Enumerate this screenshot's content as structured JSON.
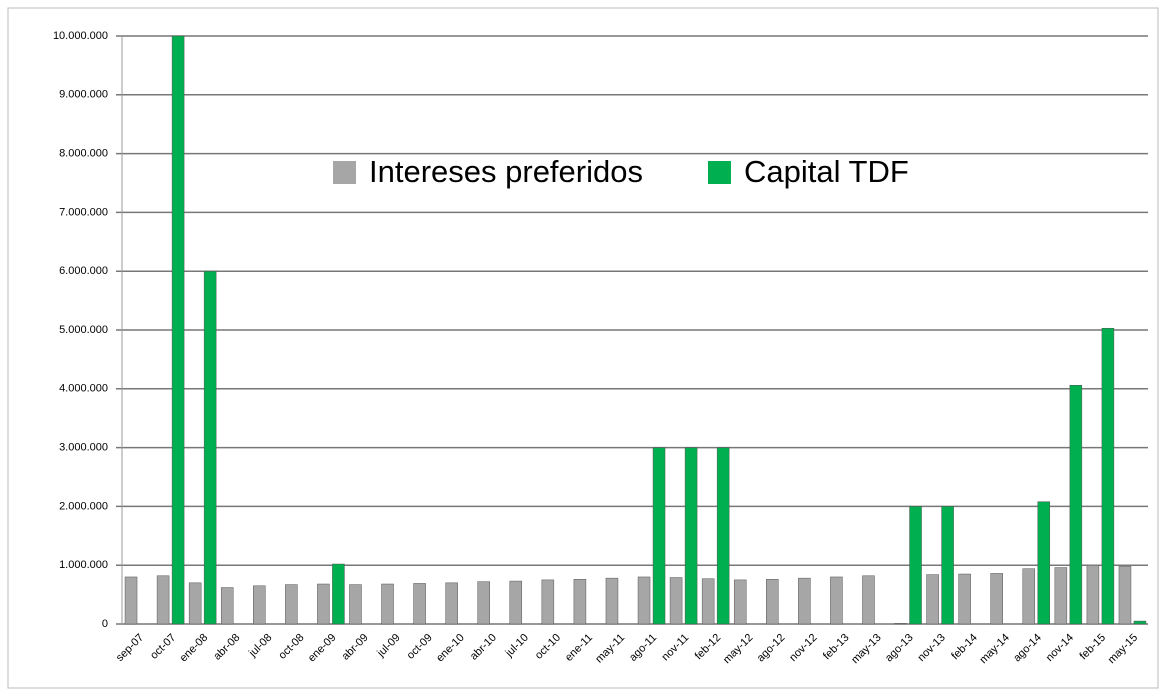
{
  "chart_data": {
    "type": "bar",
    "categories": [
      "sep-07",
      "oct-07",
      "ene-08",
      "abr-08",
      "jul-08",
      "oct-08",
      "ene-09",
      "abr-09",
      "jul-09",
      "oct-09",
      "ene-10",
      "abr-10",
      "jul-10",
      "oct-10",
      "ene-11",
      "may-11",
      "ago-11",
      "nov-11",
      "feb-12",
      "may-12",
      "ago-12",
      "nov-12",
      "feb-13",
      "may-13",
      "ago-13",
      "nov-13",
      "feb-14",
      "may-14",
      "ago-14",
      "nov-14",
      "feb-15",
      "may-15"
    ],
    "series": [
      {
        "name": "Intereses preferidos",
        "color": "#a6a6a6",
        "values": [
          800000,
          820000,
          700000,
          620000,
          650000,
          670000,
          680000,
          670000,
          680000,
          690000,
          700000,
          720000,
          730000,
          750000,
          760000,
          780000,
          800000,
          790000,
          770000,
          750000,
          760000,
          780000,
          800000,
          820000,
          10000,
          840000,
          850000,
          860000,
          940000,
          960000,
          1000000,
          980000
        ]
      },
      {
        "name": "Capital TDF",
        "color": "#00b050",
        "values": [
          null,
          10000000,
          6000000,
          null,
          null,
          null,
          1020000,
          null,
          null,
          null,
          null,
          null,
          null,
          null,
          null,
          null,
          3000000,
          3000000,
          3000000,
          null,
          null,
          null,
          null,
          null,
          2000000,
          2000000,
          null,
          null,
          2080000,
          4060000,
          5030000,
          50000
        ]
      }
    ],
    "ylim": [
      0,
      10000000
    ],
    "yticks": [
      0,
      {
        "value": 1000000,
        "label": "1.000.000"
      },
      {
        "value": 2000000,
        "label": "2.000.000"
      },
      {
        "value": 3000000,
        "label": "3.000.000"
      },
      {
        "value": 4000000,
        "label": "4.000.000"
      },
      {
        "value": 5000000,
        "label": "5.000.000"
      },
      {
        "value": 6000000,
        "label": "6.000.000"
      },
      {
        "value": 7000000,
        "label": "7.000.000"
      },
      {
        "value": 8000000,
        "label": "8.000.000"
      },
      {
        "value": 9000000,
        "label": "9.000.000"
      },
      {
        "value": 10000000,
        "label": "10.000.000"
      }
    ],
    "grid": true
  }
}
